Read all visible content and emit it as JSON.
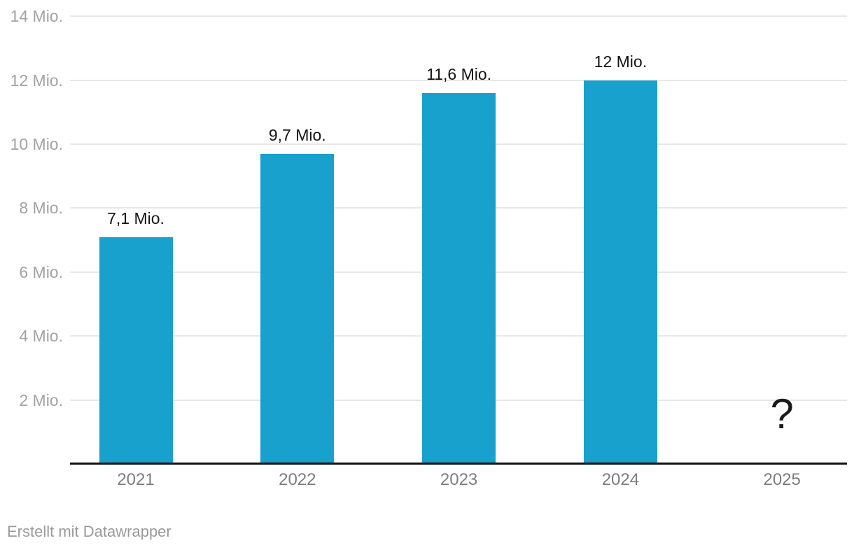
{
  "chart_data": {
    "type": "bar",
    "title": "",
    "xlabel": "",
    "ylabel": "",
    "unit": "Mio.",
    "categories": [
      "2021",
      "2022",
      "2023",
      "2024",
      "2025"
    ],
    "values": [
      7.1,
      9.7,
      11.6,
      12,
      null
    ],
    "series": [
      {
        "category": "2021",
        "value": 7.1,
        "label": "7,1 Mio."
      },
      {
        "category": "2022",
        "value": 9.7,
        "label": "9,7 Mio."
      },
      {
        "category": "2023",
        "value": 11.6,
        "label": "11,6 Mio."
      },
      {
        "category": "2024",
        "value": 12,
        "label": "12 Mio."
      },
      {
        "category": "2025",
        "value": null,
        "label": "?"
      }
    ],
    "y_ticks": [
      {
        "value": 14,
        "label": "14 Mio."
      },
      {
        "value": 12,
        "label": "12 Mio."
      },
      {
        "value": 10,
        "label": "10 Mio."
      },
      {
        "value": 8,
        "label": "8 Mio."
      },
      {
        "value": 6,
        "label": "6 Mio."
      },
      {
        "value": 4,
        "label": "4 Mio."
      },
      {
        "value": 2,
        "label": "2 Mio."
      }
    ],
    "ylim": [
      0,
      14
    ],
    "grid": "horizontal",
    "legend": "none",
    "bar_color": "#18a1cd"
  },
  "colors": {
    "bar": "#18a1cd",
    "gridline": "#e7e7e7",
    "axis_line": "#111111",
    "y_tick_text": "#a3a3a3",
    "x_tick_text": "#7d7d7d",
    "value_label_text": "#131313",
    "footer_text": "#9a9a9a",
    "background": "#ffffff"
  },
  "footer": {
    "attribution": "Erstellt mit Datawrapper"
  }
}
